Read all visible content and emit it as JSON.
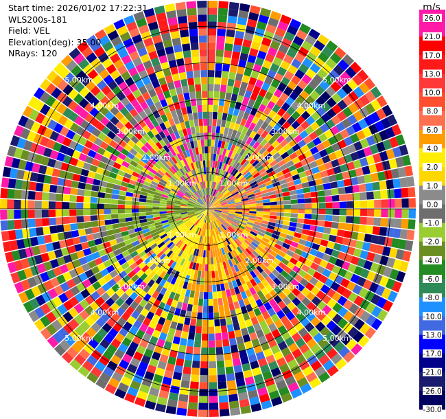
{
  "header": {
    "start_time": "Start time: 2026/01/02 17:22:31",
    "instrument": "WLS200s-181",
    "field": "Field: VEL",
    "elevation": "Elevation(deg): 35.00",
    "nrays": "NRays: 120"
  },
  "chart_data": {
    "type": "heatmap",
    "projection": "polar PPI scan",
    "field": "VEL",
    "units": "m/s",
    "elevation_deg": 35.0,
    "n_rays": 120,
    "range_rings_km": [
      1,
      2,
      3,
      4,
      5
    ],
    "ring_labels": [
      "1.00km",
      "2.00km",
      "3.00km",
      "4.00km",
      "5.00km"
    ],
    "colorbar_ticks": [
      26.0,
      21.0,
      17.0,
      13.0,
      10.0,
      8.0,
      6.0,
      4.0,
      2.0,
      1.0,
      0.0,
      -1.0,
      -2.0,
      -4.0,
      -6.0,
      -8.0,
      -10.0,
      -13.0,
      -17.0,
      -21.0,
      -26.0,
      -30.0
    ],
    "colorbar_tick_labels": [
      "26.0",
      "21.0",
      "17.0",
      "13.0",
      "10.0",
      "8.0",
      "6.0",
      "4.0",
      "2.0",
      "1.0",
      "0.0",
      "-1.0",
      "-2.0",
      "-4.0",
      "-6.0",
      "-8.0",
      "-10.0",
      "-13.0",
      "-17.0",
      "-21.0",
      "-26.0",
      "-30.0"
    ],
    "colorbar_colors": [
      "#ff1aa8",
      "#ff0000",
      "#ff1a1a",
      "#ff3838",
      "#ff4f2f",
      "#ff7050",
      "#ff9d00",
      "#ffee00",
      "#ffd700",
      "#8b8b8b",
      "#6e6e6e",
      "#9acd32",
      "#6b8e23",
      "#228b22",
      "#2e8b57",
      "#1e90ff",
      "#4169e1",
      "#0000ff",
      "#00008b",
      "#1a1a6e",
      "#000060"
    ],
    "colormap_sequence": [
      "#000060",
      "#1a1a6e",
      "#00008b",
      "#0000ff",
      "#4169e1",
      "#1e90ff",
      "#2e8b57",
      "#228b22",
      "#6b8e23",
      "#9acd32",
      "#6e6e6e",
      "#8b8b8b",
      "#ffd700",
      "#ffee00",
      "#ff9d00",
      "#ff7050",
      "#ff4f2f",
      "#ff3838",
      "#ff1a1a",
      "#ff0000",
      "#ff1aa8"
    ],
    "dominant_patterns": [
      {
        "region": "south-southwest, near range",
        "color": "#ffee00",
        "value_range": [
          2.0,
          6.0
        ]
      },
      {
        "region": "south-southeast, near range",
        "color": "#ff9d00",
        "value_range": [
          4.0,
          8.0
        ]
      },
      {
        "region": "west, near range",
        "color": "#6b8e23",
        "value_range": [
          -4.0,
          -1.0
        ]
      },
      {
        "region": "far field",
        "color": "mixed",
        "value_range": [
          -30.0,
          26.0
        ]
      }
    ]
  }
}
